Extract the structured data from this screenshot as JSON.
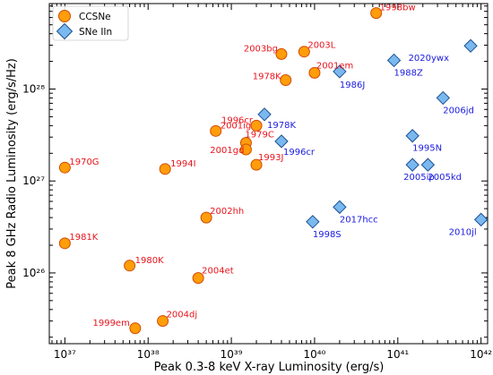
{
  "chart_data": {
    "type": "scatter",
    "title": "",
    "xlabel": "Peak 0.3-8 keV X-ray Luminosity (erg/s)",
    "ylabel": "Peak 8 GHz Radio Luminosity (erg/s/Hz)",
    "xscale": "log",
    "yscale": "log",
    "xlim": [
      6.5e+36,
      1.2e+42
    ],
    "ylim": [
      1.7e+25,
      8.5e+28
    ],
    "xticks": [
      {
        "value": 1e+37,
        "label": "10³⁷"
      },
      {
        "value": 1e+38,
        "label": "10³⁸"
      },
      {
        "value": 1e+39,
        "label": "10³⁹"
      },
      {
        "value": 1e+40,
        "label": "10⁴⁰"
      },
      {
        "value": 1e+41,
        "label": "10⁴¹"
      },
      {
        "value": 1e+42,
        "label": "10⁴²"
      }
    ],
    "yticks": [
      {
        "value": 1e+26,
        "label": "10²⁶"
      },
      {
        "value": 1e+27,
        "label": "10²⁷"
      },
      {
        "value": 1e+28,
        "label": "10²⁸"
      }
    ],
    "legend_position": "top-left",
    "series": [
      {
        "name": "CCSNe",
        "marker": "circle",
        "color": "#ff9d0a",
        "edge_color": "#d14b00",
        "label_color": "#e8141c",
        "points": [
          {
            "label": "1993J",
            "x": 2e+39,
            "y": 1.5e+27
          },
          {
            "label": "1979C",
            "x": 1.5e+39,
            "y": 2.6e+27
          },
          {
            "label": "2001gd",
            "x": 1.5e+39,
            "y": 2.2e+27
          },
          {
            "label": "1996cr",
            "x": 2e+39,
            "y": 4e+27
          },
          {
            "label": "2001ig",
            "x": 6.5e+38,
            "y": 3.5e+27
          },
          {
            "label": "1994I",
            "x": 1.6e+38,
            "y": 1.35e+27
          },
          {
            "label": "1970G",
            "x": 1e+37,
            "y": 1.4e+27
          },
          {
            "label": "1981K",
            "x": 1e+37,
            "y": 2.1e+26
          },
          {
            "label": "1980K",
            "x": 6e+37,
            "y": 1.2e+26
          },
          {
            "label": "2002hh",
            "x": 5e+38,
            "y": 4e+26
          },
          {
            "label": "2004et",
            "x": 4e+38,
            "y": 8.8e+25
          },
          {
            "label": "2004dj",
            "x": 1.5e+38,
            "y": 3e+25
          },
          {
            "label": "1999em",
            "x": 7e+37,
            "y": 2.5e+25
          },
          {
            "label": "2003bg",
            "x": 4e+39,
            "y": 2.4e+28
          },
          {
            "label": "2003L",
            "x": 7.5e+39,
            "y": 2.55e+28
          },
          {
            "label": "1978K",
            "x": 4.5e+39,
            "y": 1.25e+28
          },
          {
            "label": "2001em",
            "x": 1e+40,
            "y": 1.5e+28
          },
          {
            "label": "1998bw",
            "x": 5.5e+40,
            "y": 6.7e+28
          }
        ]
      },
      {
        "name": "SNe IIn",
        "marker": "diamond",
        "color": "#79b9ef",
        "edge_color": "#1d4f91",
        "label_color": "#1a1ae0",
        "points": [
          {
            "label": "1978K",
            "x": 2.5e+39,
            "y": 5.3e+27
          },
          {
            "label": "1996cr",
            "x": 4e+39,
            "y": 2.7e+27
          },
          {
            "label": "1986J",
            "x": 2e+40,
            "y": 1.55e+28
          },
          {
            "label": "1988Z",
            "x": 9e+40,
            "y": 2.05e+28
          },
          {
            "label": "2020ywx",
            "x": 7.5e+41,
            "y": 2.95e+28
          },
          {
            "label": "2006jd",
            "x": 3.5e+41,
            "y": 8e+27
          },
          {
            "label": "1995N",
            "x": 1.5e+41,
            "y": 3.1e+27
          },
          {
            "label": "2005ip",
            "x": 1.5e+41,
            "y": 1.5e+27
          },
          {
            "label": "2005kd",
            "x": 2.3e+41,
            "y": 1.5e+27
          },
          {
            "label": "2017hcc",
            "x": 2e+40,
            "y": 5.2e+26
          },
          {
            "label": "1998S",
            "x": 9.5e+39,
            "y": 3.6e+26
          },
          {
            "label": "2010jl",
            "x": 1e+42,
            "y": 3.8e+26
          }
        ]
      }
    ]
  }
}
